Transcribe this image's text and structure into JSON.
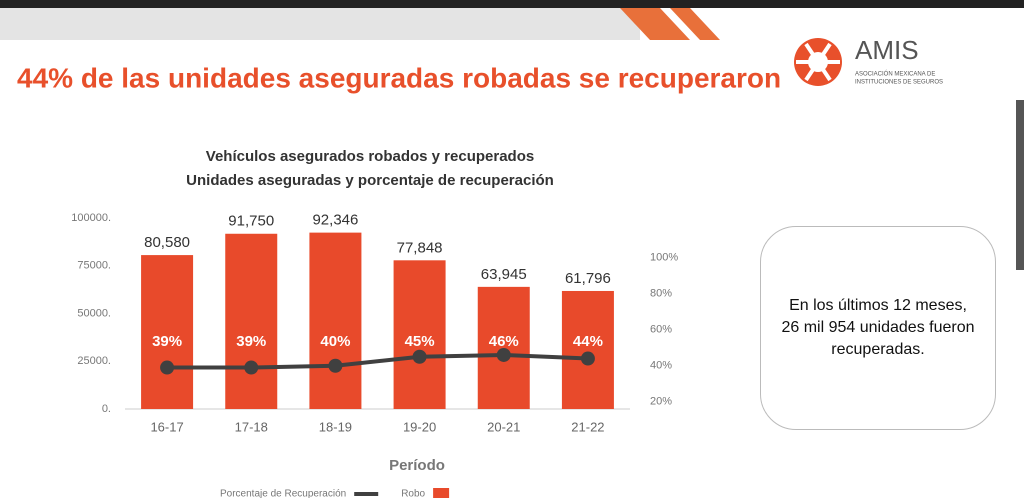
{
  "header": {
    "title": "44% de las unidades aseguradas robadas se recuperaron"
  },
  "logo": {
    "name": "AMIS",
    "line1": "ASOCIACIÓN MEXICANA DE",
    "line2": "INSTITUCIONES DE SEGUROS"
  },
  "chart_data": {
    "type": "bar",
    "title": "Vehículos asegurados robados y recuperados",
    "subtitle": "Unidades aseguradas y porcentaje de recuperación",
    "x_label": "Período",
    "categories": [
      "16-17",
      "17-18",
      "18-19",
      "19-20",
      "20-21",
      "21-22"
    ],
    "series": [
      {
        "name": "Porcentaje de Recuperación",
        "type": "line",
        "axis": "y2",
        "color": "#404040",
        "values": [
          39,
          39,
          40,
          45,
          46,
          44
        ],
        "value_labels": [
          "39%",
          "39%",
          "40%",
          "45%",
          "46%",
          "44%"
        ]
      },
      {
        "name": "Robo",
        "type": "bar",
        "color": "#e84a2b",
        "values": [
          80580,
          91750,
          92346,
          77848,
          63945,
          61796
        ],
        "value_labels": [
          "80,580",
          "91,750",
          "92,346",
          "77,848",
          "63,945",
          "61,796"
        ]
      }
    ],
    "ylim": [
      0,
      100000
    ],
    "yticks": [
      {
        "value": 0,
        "label": "0."
      },
      {
        "value": 25000,
        "label": "25000."
      },
      {
        "value": 50000,
        "label": "50000."
      },
      {
        "value": 75000,
        "label": "75000."
      },
      {
        "value": 100000,
        "label": "100000."
      }
    ],
    "y2lim": [
      16,
      122
    ],
    "y2ticks": [
      {
        "value": 20,
        "label": "20%"
      },
      {
        "value": 40,
        "label": "40%"
      },
      {
        "value": 60,
        "label": "60%"
      },
      {
        "value": 80,
        "label": "80%"
      },
      {
        "value": 100,
        "label": "100%"
      }
    ]
  },
  "callout": {
    "text": "En los últimos 12 meses, 26 mil 954 unidades fueron recuperadas."
  }
}
